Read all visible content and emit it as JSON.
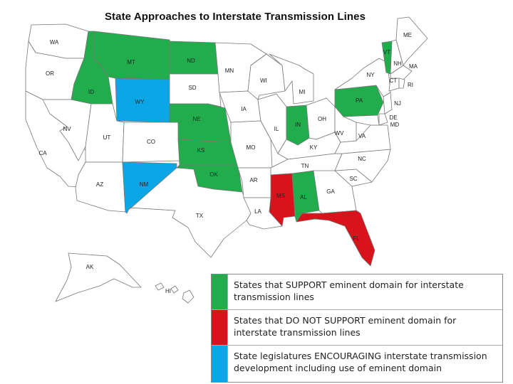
{
  "title": "State Approaches  to Interstate Transmission Lines",
  "colors": {
    "support": "#21ad4b",
    "oppose": "#d8131b",
    "encourage": "#0aa6e6",
    "none": "#ffffff"
  },
  "states": [
    {
      "abbr": "WA",
      "status": "none"
    },
    {
      "abbr": "OR",
      "status": "none"
    },
    {
      "abbr": "CA",
      "status": "none"
    },
    {
      "abbr": "NV",
      "status": "none"
    },
    {
      "abbr": "ID",
      "status": "support"
    },
    {
      "abbr": "MT",
      "status": "support"
    },
    {
      "abbr": "WY",
      "status": "encourage"
    },
    {
      "abbr": "UT",
      "status": "none"
    },
    {
      "abbr": "AZ",
      "status": "none"
    },
    {
      "abbr": "CO",
      "status": "none"
    },
    {
      "abbr": "NM",
      "status": "encourage"
    },
    {
      "abbr": "ND",
      "status": "support"
    },
    {
      "abbr": "SD",
      "status": "none"
    },
    {
      "abbr": "NE",
      "status": "support"
    },
    {
      "abbr": "KS",
      "status": "support"
    },
    {
      "abbr": "OK",
      "status": "support"
    },
    {
      "abbr": "TX",
      "status": "none"
    },
    {
      "abbr": "MN",
      "status": "none"
    },
    {
      "abbr": "IA",
      "status": "none"
    },
    {
      "abbr": "MO",
      "status": "none"
    },
    {
      "abbr": "AR",
      "status": "none"
    },
    {
      "abbr": "LA",
      "status": "none"
    },
    {
      "abbr": "WI",
      "status": "none"
    },
    {
      "abbr": "IL",
      "status": "none"
    },
    {
      "abbr": "MI",
      "status": "none"
    },
    {
      "abbr": "IN",
      "status": "support"
    },
    {
      "abbr": "OH",
      "status": "none"
    },
    {
      "abbr": "KY",
      "status": "none"
    },
    {
      "abbr": "TN",
      "status": "none"
    },
    {
      "abbr": "MS",
      "status": "oppose"
    },
    {
      "abbr": "AL",
      "status": "support"
    },
    {
      "abbr": "GA",
      "status": "none"
    },
    {
      "abbr": "FL",
      "status": "oppose"
    },
    {
      "abbr": "SC",
      "status": "none"
    },
    {
      "abbr": "NC",
      "status": "none"
    },
    {
      "abbr": "VA",
      "status": "none"
    },
    {
      "abbr": "WV",
      "status": "none"
    },
    {
      "abbr": "PA",
      "status": "support"
    },
    {
      "abbr": "NY",
      "status": "none"
    },
    {
      "abbr": "VT",
      "status": "support"
    },
    {
      "abbr": "NH",
      "status": "none"
    },
    {
      "abbr": "ME",
      "status": "none"
    },
    {
      "abbr": "MA",
      "status": "none"
    },
    {
      "abbr": "CT",
      "status": "none"
    },
    {
      "abbr": "RI",
      "status": "none"
    },
    {
      "abbr": "NJ",
      "status": "none"
    },
    {
      "abbr": "DE",
      "status": "none"
    },
    {
      "abbr": "MD",
      "status": "none"
    },
    {
      "abbr": "AK",
      "status": "none"
    },
    {
      "abbr": "HI",
      "status": "none"
    }
  ],
  "legend": [
    {
      "status": "support",
      "text": "States that  SUPPORT eminent domain for interstate transmission lines"
    },
    {
      "status": "oppose",
      "text": "States that DO NOT SUPPORT eminent domain for interstate transmission lines"
    },
    {
      "status": "encourage",
      "text": "State legislatures ENCOURAGING interstate transmission development including use of eminent domain"
    }
  ]
}
